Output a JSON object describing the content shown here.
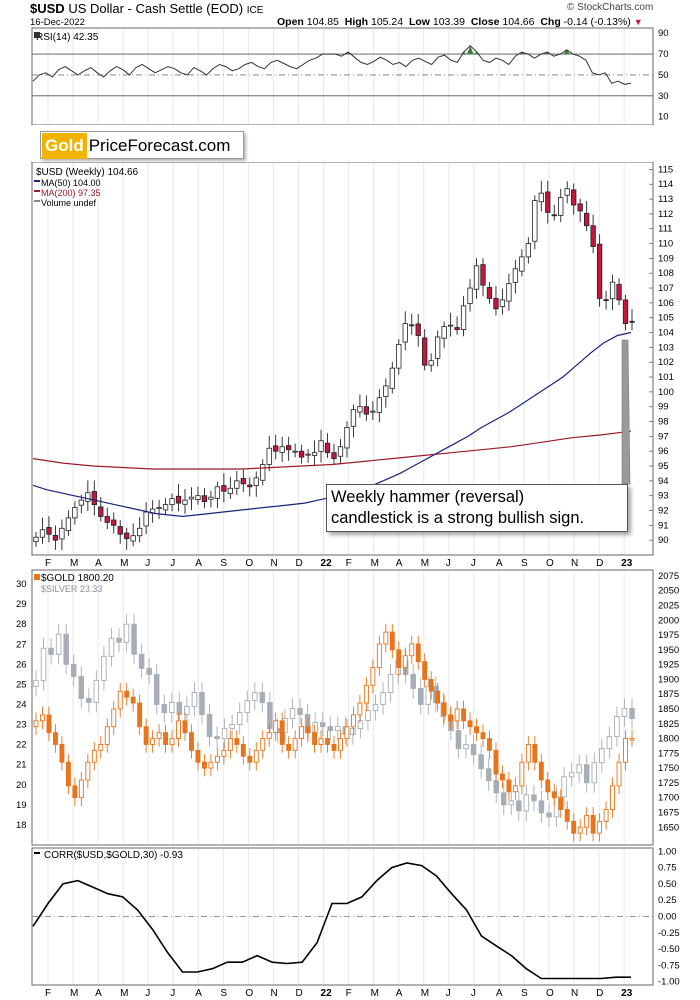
{
  "header": {
    "symbol": "$USD",
    "name": "US Dollar - Cash Settle (EOD)",
    "exchange": "ICE",
    "date": "16-Dec-2022",
    "open_label": "Open",
    "open": "104.85",
    "high_label": "High",
    "high": "105.24",
    "low_label": "Low",
    "low": "103.39",
    "close_label": "Close",
    "close": "104.66",
    "chg_label": "Chg",
    "chg": "-0.14 (-0.13%)",
    "watermark": "© StockCharts.com"
  },
  "logo": {
    "part1": "Gold",
    "part2": "PriceForecast.com"
  },
  "callout": {
    "line1": "Weekly hammer (reversal)",
    "line2": "candlestick is a strong bullish sign."
  },
  "colors": {
    "up": "#ffffff",
    "down": "#c4163c",
    "ma50": "#1a237e",
    "ma200": "#9b1b2a",
    "gold": "#e8741b",
    "silver": "#a8aeb5",
    "rsi_fill": "#3e7d3e",
    "arrow": "#9a9a9a"
  },
  "x_axis": {
    "labels": [
      "F",
      "M",
      "A",
      "M",
      "J",
      "J",
      "A",
      "S",
      "O",
      "N",
      "D",
      "22",
      "F",
      "M",
      "A",
      "M",
      "J",
      "J",
      "A",
      "S",
      "O",
      "N",
      "D",
      "23"
    ],
    "bold_index": [
      11,
      23
    ]
  },
  "chart_data": [
    {
      "type": "line",
      "panel": "rsi",
      "legend": "RSI(14) 42.35",
      "ylim": [
        0,
        100
      ],
      "yticks": [
        10,
        30,
        50,
        70,
        90
      ],
      "overbought": 70,
      "oversold": 30,
      "series": [
        {
          "name": "RSI(14)",
          "values": [
            44,
            50,
            52,
            48,
            55,
            58,
            54,
            50,
            54,
            57,
            52,
            48,
            54,
            58,
            55,
            50,
            57,
            60,
            56,
            52,
            55,
            58,
            56,
            52,
            50,
            57,
            54,
            50,
            56,
            60,
            58,
            54,
            56,
            60,
            62,
            58,
            56,
            62,
            64,
            61,
            58,
            56,
            60,
            64,
            66,
            70,
            70,
            70,
            68,
            72,
            67,
            62,
            60,
            63,
            67,
            64,
            60,
            62,
            58,
            64,
            66,
            63,
            60,
            67,
            69,
            64,
            62,
            72,
            78,
            72,
            64,
            62,
            66,
            64,
            60,
            68,
            72,
            70,
            66,
            70,
            72,
            68,
            70,
            74,
            70,
            68,
            64,
            52,
            50,
            52,
            42,
            44,
            41,
            42
          ]
        }
      ]
    },
    {
      "type": "candlestick",
      "panel": "price",
      "title": "$USD (Weekly) 104.66",
      "legend": [
        "MA(50) 104.00",
        "MA(200) 97.35",
        "Volume undef"
      ],
      "ylim": [
        89,
        115.5
      ],
      "yticks": [
        90,
        91,
        92,
        93,
        94,
        95,
        96,
        97,
        98,
        99,
        100,
        101,
        102,
        103,
        104,
        105,
        106,
        107,
        108,
        109,
        110,
        111,
        112,
        113,
        114,
        115
      ],
      "series": [
        {
          "name": "$USD",
          "close": [
            90.2,
            90.7,
            90.4,
            90.0,
            90.8,
            91.5,
            92.2,
            92.7,
            93.2,
            92.4,
            91.6,
            91.2,
            91.0,
            90.4,
            90.1,
            90.3,
            90.8,
            91.9,
            92.1,
            92.2,
            92.4,
            92.8,
            92.5,
            92.7,
            92.9,
            93.0,
            92.6,
            92.9,
            93.6,
            93.3,
            93.5,
            94.0,
            93.8,
            93.6,
            94.2,
            95.1,
            96.2,
            96.0,
            96.3,
            96.1,
            96.0,
            95.6,
            95.8,
            95.9,
            96.7,
            95.9,
            95.5,
            96.3,
            97.6,
            98.8,
            99.0,
            98.5,
            98.7,
            99.6,
            100.4,
            101.6,
            103.2,
            104.6,
            104.5,
            103.8,
            101.8,
            102.1,
            103.7,
            104.4,
            104.5,
            104.2,
            105.8,
            107.0,
            108.5,
            107.2,
            106.3,
            105.6,
            106.2,
            107.3,
            108.3,
            109.1,
            110.0,
            112.9,
            113.4,
            112.1,
            111.9,
            113.1,
            113.7,
            112.6,
            112.2,
            111.2,
            109.8,
            106.3,
            106.2,
            107.4,
            106.2,
            104.6,
            104.7
          ]
        },
        {
          "name": "MA(50)",
          "values": [
            93.7,
            93.4,
            93.2,
            93.0,
            92.8,
            92.6,
            92.4,
            92.2,
            92.0,
            91.8,
            91.7,
            91.6,
            91.7,
            91.8,
            91.9,
            92.0,
            92.1,
            92.2,
            92.3,
            92.4,
            92.5,
            92.7,
            92.9,
            93.1,
            93.4,
            93.7,
            94.1,
            94.5,
            95.0,
            95.5,
            96.0,
            96.5,
            97.0,
            97.6,
            98.1,
            98.6,
            99.2,
            99.8,
            100.4,
            101.0,
            101.8,
            102.6,
            103.3,
            103.8,
            104.0
          ]
        },
        {
          "name": "MA(200)",
          "values": [
            95.5,
            95.2,
            95.0,
            94.9,
            94.8,
            94.8,
            94.8,
            94.8,
            94.9,
            95.0,
            95.1,
            95.3,
            95.5,
            95.7,
            95.9,
            96.1,
            96.3,
            96.6,
            96.9,
            97.1,
            97.35
          ]
        }
      ]
    },
    {
      "type": "candlestick",
      "panel": "gold_silver",
      "legend": [
        "$GOLD 1800.20",
        "$SILVER 23.33"
      ],
      "ylim_left": [
        17,
        30.7
      ],
      "yticks_left": [
        18,
        19,
        20,
        21,
        22,
        23,
        24,
        25,
        26,
        27,
        28,
        29,
        30
      ],
      "ylim_right": [
        1620,
        2085
      ],
      "yticks_right": [
        1650,
        1675,
        1700,
        1725,
        1750,
        1775,
        1800,
        1825,
        1850,
        1875,
        1900,
        1925,
        1950,
        1975,
        2000,
        2025,
        2050,
        2075
      ],
      "series": [
        {
          "name": "$GOLD",
          "close": [
            1830,
            1840,
            1810,
            1790,
            1760,
            1720,
            1700,
            1730,
            1760,
            1780,
            1790,
            1820,
            1850,
            1880,
            1870,
            1860,
            1820,
            1790,
            1800,
            1810,
            1790,
            1800,
            1830,
            1810,
            1780,
            1760,
            1750,
            1760,
            1770,
            1780,
            1800,
            1790,
            1770,
            1760,
            1780,
            1800,
            1810,
            1830,
            1790,
            1780,
            1800,
            1820,
            1810,
            1790,
            1800,
            1790,
            1780,
            1800,
            1820,
            1840,
            1860,
            1890,
            1920,
            1960,
            1980,
            1950,
            1920,
            1940,
            1960,
            1930,
            1900,
            1880,
            1860,
            1840,
            1830,
            1850,
            1830,
            1820,
            1810,
            1800,
            1780,
            1740,
            1730,
            1710,
            1720,
            1760,
            1790,
            1760,
            1730,
            1710,
            1700,
            1680,
            1660,
            1640,
            1650,
            1670,
            1640,
            1660,
            1680,
            1720,
            1760,
            1800,
            1800
          ]
        },
        {
          "name": "$SILVER",
          "values": [
            25.2,
            26.8,
            26.5,
            27.5,
            26.0,
            25.4,
            24.3,
            24.1,
            25.2,
            26.4,
            27.3,
            27.1,
            28.0,
            26.5,
            25.8,
            25.5,
            24.0,
            23.6,
            24.1,
            23.5,
            23.9,
            24.6,
            23.5,
            22.4,
            22.3,
            22.8,
            23.0,
            23.6,
            24.2,
            24.6,
            24.1,
            22.8,
            22.6,
            23.3,
            23.8,
            23.5,
            22.6,
            23.1,
            22.9,
            22.7,
            22.9,
            22.5,
            22.8,
            23.2,
            23.7,
            24.0,
            24.6,
            25.5,
            26.2,
            25.5,
            24.8,
            24.0,
            24.9,
            24.1,
            23.4,
            22.7,
            21.8,
            22.0,
            21.5,
            20.8,
            20.2,
            19.6,
            19.0,
            19.2,
            18.7,
            19.5,
            19.2,
            18.6,
            18.4,
            19.4,
            20.4,
            20.6,
            21.0,
            20.1,
            21.1,
            21.8,
            22.4,
            23.4,
            23.8,
            23.3
          ]
        }
      ]
    },
    {
      "type": "line",
      "panel": "correlation",
      "legend": "CORR($USD,$GOLD,30) -0.93",
      "ylim": [
        -1.05,
        1.05
      ],
      "yticks": [
        1.0,
        0.75,
        0.5,
        0.25,
        0.0,
        -0.25,
        -0.5,
        -0.75,
        -1.0
      ],
      "series": [
        {
          "name": "CORR($USD,$GOLD,30)",
          "values": [
            -0.15,
            0.2,
            0.5,
            0.55,
            0.45,
            0.35,
            0.3,
            0.1,
            -0.2,
            -0.55,
            -0.85,
            -0.85,
            -0.8,
            -0.7,
            -0.7,
            -0.6,
            -0.7,
            -0.72,
            -0.7,
            -0.4,
            0.2,
            0.2,
            0.3,
            0.55,
            0.75,
            0.82,
            0.78,
            0.62,
            0.35,
            0.1,
            -0.3,
            -0.45,
            -0.6,
            -0.8,
            -0.95,
            -0.95,
            -0.95,
            -0.95,
            -0.95,
            -0.93,
            -0.93
          ]
        }
      ]
    }
  ]
}
